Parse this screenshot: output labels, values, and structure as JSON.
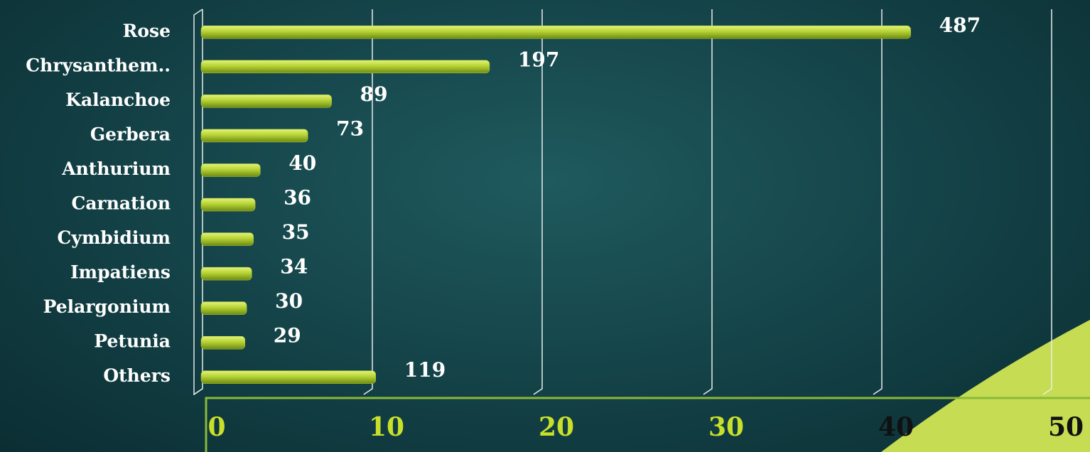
{
  "chart_data": {
    "type": "bar",
    "orientation": "horizontal",
    "categories": [
      "Rose",
      "Chrysanthem..",
      "Kalanchoe",
      "Gerbera",
      "Anthurium",
      "Carnation",
      "Cymbidium",
      "Impatiens",
      "Pelargonium",
      "Petunia",
      "Others"
    ],
    "values": [
      41.7,
      16.9,
      7.6,
      6.2,
      3.4,
      3.1,
      3.0,
      2.9,
      2.6,
      2.5,
      10.2
    ],
    "data_labels": [
      487,
      197,
      89,
      73,
      40,
      36,
      35,
      34,
      30,
      29,
      119
    ],
    "color": "#b5d334",
    "xlim": [
      0,
      50
    ],
    "xticks": [
      0,
      10,
      20,
      30,
      40,
      50
    ],
    "grid": true
  }
}
